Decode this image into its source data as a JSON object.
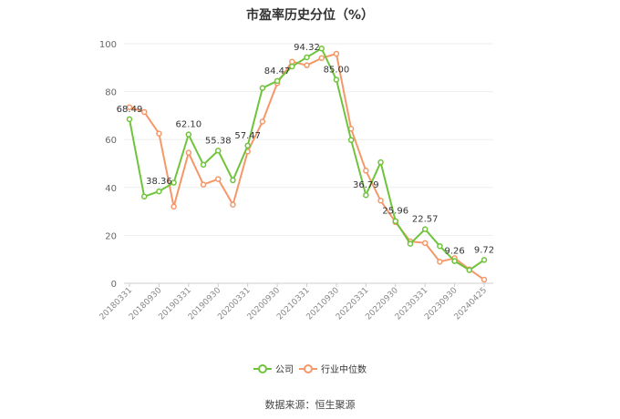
{
  "title": "市盈率历史分位（%）",
  "source": "数据来源：恒生聚源",
  "chart_data": {
    "type": "line",
    "title": "市盈率历史分位（%）",
    "ylim": [
      0,
      100
    ],
    "yticks": [
      0,
      20,
      40,
      60,
      80,
      100
    ],
    "grid": true,
    "legend_position": "bottom",
    "tick_labels": [
      "20180331",
      "20180930",
      "20190331",
      "20190930",
      "20200331",
      "20200930",
      "20210331",
      "20210930",
      "20220331",
      "20220930",
      "20230331",
      "20230930",
      "20240425"
    ],
    "x_points": 25,
    "tick_positions": [
      0,
      2,
      4,
      6,
      8,
      10,
      12,
      14,
      16,
      18,
      20,
      22,
      24
    ],
    "series": [
      {
        "name": "公司",
        "color": "#6fc43b",
        "values": [
          68.49,
          36.2,
          38.36,
          42.0,
          62.1,
          49.5,
          55.38,
          43.0,
          57.47,
          81.5,
          84.47,
          90.5,
          94.32,
          98.0,
          85.0,
          59.8,
          36.79,
          50.5,
          25.96,
          16.5,
          22.57,
          15.5,
          9.26,
          5.5,
          9.72
        ]
      },
      {
        "name": "行业中位数",
        "color": "#f59869",
        "values": [
          73.5,
          71.5,
          62.5,
          32.0,
          54.5,
          41.2,
          43.5,
          32.8,
          55.0,
          67.5,
          83.5,
          92.5,
          91.0,
          94.0,
          95.8,
          64.5,
          47.0,
          34.5,
          25.5,
          17.5,
          16.8,
          9.0,
          10.5,
          5.8,
          1.5
        ]
      }
    ],
    "data_labels": [
      {
        "index": 0,
        "text": "68.49"
      },
      {
        "index": 2,
        "text": "38.36"
      },
      {
        "index": 4,
        "text": "62.10"
      },
      {
        "index": 6,
        "text": "55.38"
      },
      {
        "index": 8,
        "text": "57.47"
      },
      {
        "index": 10,
        "text": "84.47"
      },
      {
        "index": 12,
        "text": "94.32"
      },
      {
        "index": 14,
        "text": "85.00"
      },
      {
        "index": 16,
        "text": "36.79"
      },
      {
        "index": 18,
        "text": "25.96"
      },
      {
        "index": 20,
        "text": "22.57"
      },
      {
        "index": 22,
        "text": "9.26"
      },
      {
        "index": 24,
        "text": "9.72"
      }
    ]
  }
}
